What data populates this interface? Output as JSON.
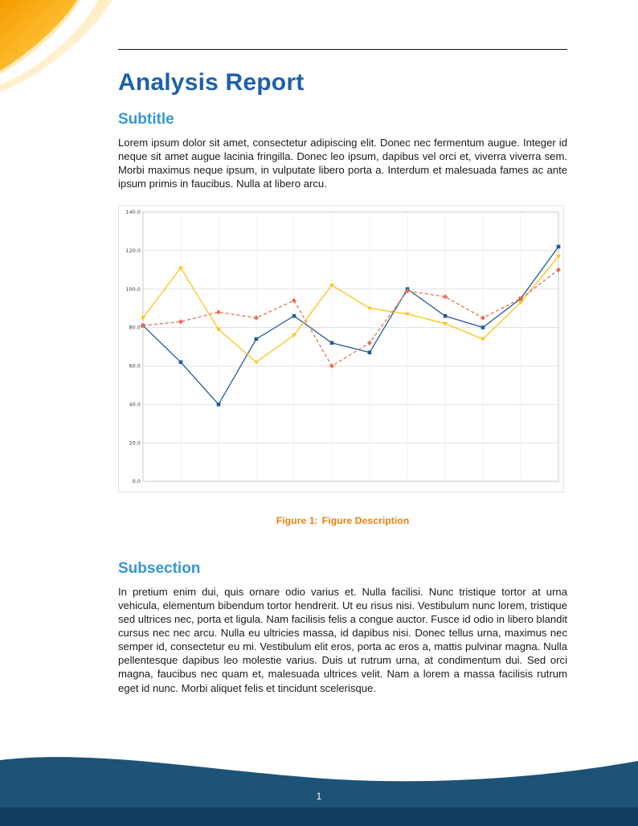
{
  "doc": {
    "title": "Analysis Report",
    "sections": [
      {
        "heading": "Subtitle",
        "paragraph": "Lorem ipsum dolor sit amet, consectetur adipiscing elit. Donec nec fermentum augue. Integer id neque sit amet augue lacinia fringilla. Donec leo ipsum, dapibus vel orci et, viverra viverra sem. Morbi maximus neque ipsum, in vulputate libero porta a. Interdum et malesuada fames ac ante ipsum primis in faucibus. Nulla at libero arcu."
      },
      {
        "heading": "Subsection",
        "paragraph": "In pretium enim dui, quis ornare odio varius et. Nulla facilisi. Nunc tristique tortor at urna vehicula, elementum bibendum tortor hendrerit. Ut eu risus nisi. Vestibulum nunc lorem, tristique sed ultrices nec, porta et ligula. Nam facilisis felis a congue auctor. Fusce id odio in libero blandit cursus nec nec arcu. Nulla eu ultricies massa, id dapibus nisi. Donec tellus urna, maximus nec semper id, consectetur eu mi. Vestibulum elit eros, porta ac eros a, mattis pulvinar magna. Nulla pellentesque dapibus leo molestie varius. Duis ut rutrum urna, at condimentum dui. Sed orci magna, faucibus nec quam et, malesuada ultrices velit. Nam a lorem a massa facilisis rutrum eget id nunc. Morbi aliquet felis et tincidunt scelerisque."
      }
    ],
    "figure": {
      "label": "Figure 1:",
      "description": "Figure Description"
    }
  },
  "footer": {
    "page_number": "1"
  },
  "colors": {
    "title_blue": "#1e60ab",
    "section_blue": "#3498d8",
    "caption_orange": "#e8820e",
    "footer_navy": "#1e5378",
    "footer_strip": "#133d5f",
    "decoration_orange": "#f49b00"
  },
  "chart_data": {
    "type": "line",
    "title": "",
    "xlabel": "",
    "ylabel": "",
    "x": [
      1,
      2,
      3,
      4,
      5,
      6,
      7,
      8,
      9,
      10,
      11,
      12
    ],
    "ylim": [
      0,
      140
    ],
    "ytick_step": 20,
    "ytick_labels": [
      "0.0",
      "20.0",
      "40.0",
      "60.0",
      "80.0",
      "100.0",
      "120.0",
      "140.0"
    ],
    "grid": true,
    "legend": "none",
    "series": [
      {
        "name": "series-blue",
        "color": "#1f5c99",
        "marker": "square",
        "dash": null,
        "values": [
          81,
          62,
          40,
          74,
          86,
          72,
          67,
          100,
          86,
          80,
          95,
          122
        ]
      },
      {
        "name": "series-yellow",
        "color": "#fdc414",
        "marker": "triangle",
        "dash": null,
        "values": [
          85,
          111,
          79,
          62,
          76,
          102,
          90,
          87,
          82,
          74,
          93,
          117
        ]
      },
      {
        "name": "series-red-dashed",
        "color": "#ec6a4f",
        "marker": "diamond",
        "dash": "4 3",
        "values": [
          81,
          83,
          88,
          85,
          94,
          60,
          72,
          99,
          96,
          85,
          95,
          110
        ]
      }
    ]
  }
}
